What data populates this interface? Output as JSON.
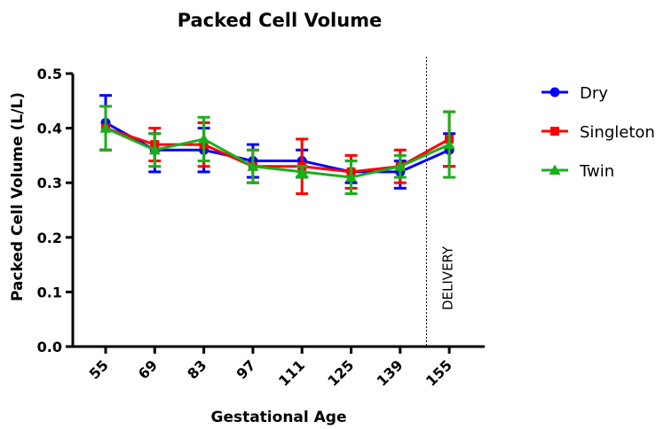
{
  "chart_data": {
    "type": "line",
    "title": "Packed Cell Volume",
    "xlabel": "Gestational Age",
    "ylabel": "Packed Cell Volume (L/L)",
    "categories": [
      "55",
      "69",
      "83",
      "97",
      "111",
      "125",
      "139",
      "155"
    ],
    "yticks": [
      "0.0",
      "0.1",
      "0.2",
      "0.3",
      "0.4",
      "0.5"
    ],
    "ylim": [
      0,
      0.5
    ],
    "grid": false,
    "legend_position": "top-right",
    "annotation": {
      "text": "DELIVERY",
      "after_category": "139"
    },
    "series": [
      {
        "name": "Dry",
        "color": "#0000ff",
        "marker": "circle",
        "values": [
          0.41,
          0.36,
          0.36,
          0.34,
          0.34,
          0.32,
          0.32,
          0.36
        ],
        "err_low": [
          0.36,
          0.32,
          0.32,
          0.31,
          0.31,
          0.3,
          0.29,
          0.33
        ],
        "err_high": [
          0.46,
          0.39,
          0.4,
          0.37,
          0.36,
          0.34,
          0.34,
          0.39
        ]
      },
      {
        "name": "Singleton",
        "color": "#ff0000",
        "marker": "square",
        "values": [
          0.4,
          0.37,
          0.37,
          0.33,
          0.33,
          0.32,
          0.33,
          0.38
        ],
        "err_low": [
          0.36,
          0.34,
          0.33,
          0.3,
          0.28,
          0.29,
          0.3,
          0.33
        ],
        "err_high": [
          0.44,
          0.4,
          0.41,
          0.36,
          0.38,
          0.35,
          0.36,
          0.43
        ]
      },
      {
        "name": "Twin",
        "color": "#1aaf1a",
        "marker": "triangle",
        "values": [
          0.4,
          0.36,
          0.38,
          0.33,
          0.32,
          0.31,
          0.33,
          0.37
        ],
        "err_low": [
          0.36,
          0.33,
          0.34,
          0.3,
          0.31,
          0.28,
          0.31,
          0.31
        ],
        "err_high": [
          0.44,
          0.39,
          0.42,
          0.36,
          0.33,
          0.34,
          0.35,
          0.43
        ]
      }
    ]
  }
}
